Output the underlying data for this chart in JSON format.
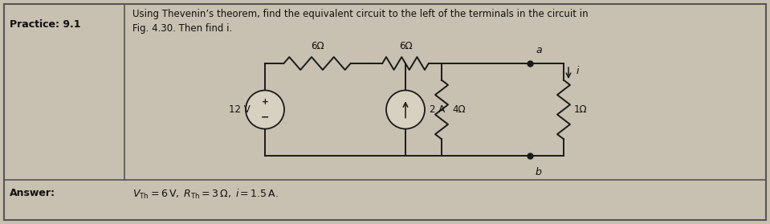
{
  "bg_color": "#c8c0b0",
  "border_color": "#555555",
  "text_color": "#111111",
  "practice_label": "Practice: 9.1",
  "problem_text_line1": "Using Thevenin’s theorem, find the equivalent circuit to the left of the terminals in the circuit in",
  "problem_text_line2": "Fig. 4.30. Then find i.",
  "answer_label": "Answer:",
  "answer_text": "$V_{\\mathrm{Th}} = 6\\,\\mathrm{V},\\; R_{\\mathrm{Th}} = 3\\,\\Omega,\\; i = 1.5\\,\\mathrm{A}.$",
  "resistor1_label": "6Ω",
  "resistor2_label": "6Ω",
  "resistor3_label": "4Ω",
  "resistor4_label": "1Ω",
  "voltage_label": "12 V",
  "current_label": "2 A",
  "node_a": "a",
  "node_b": "b",
  "current_arrow_label": "i"
}
